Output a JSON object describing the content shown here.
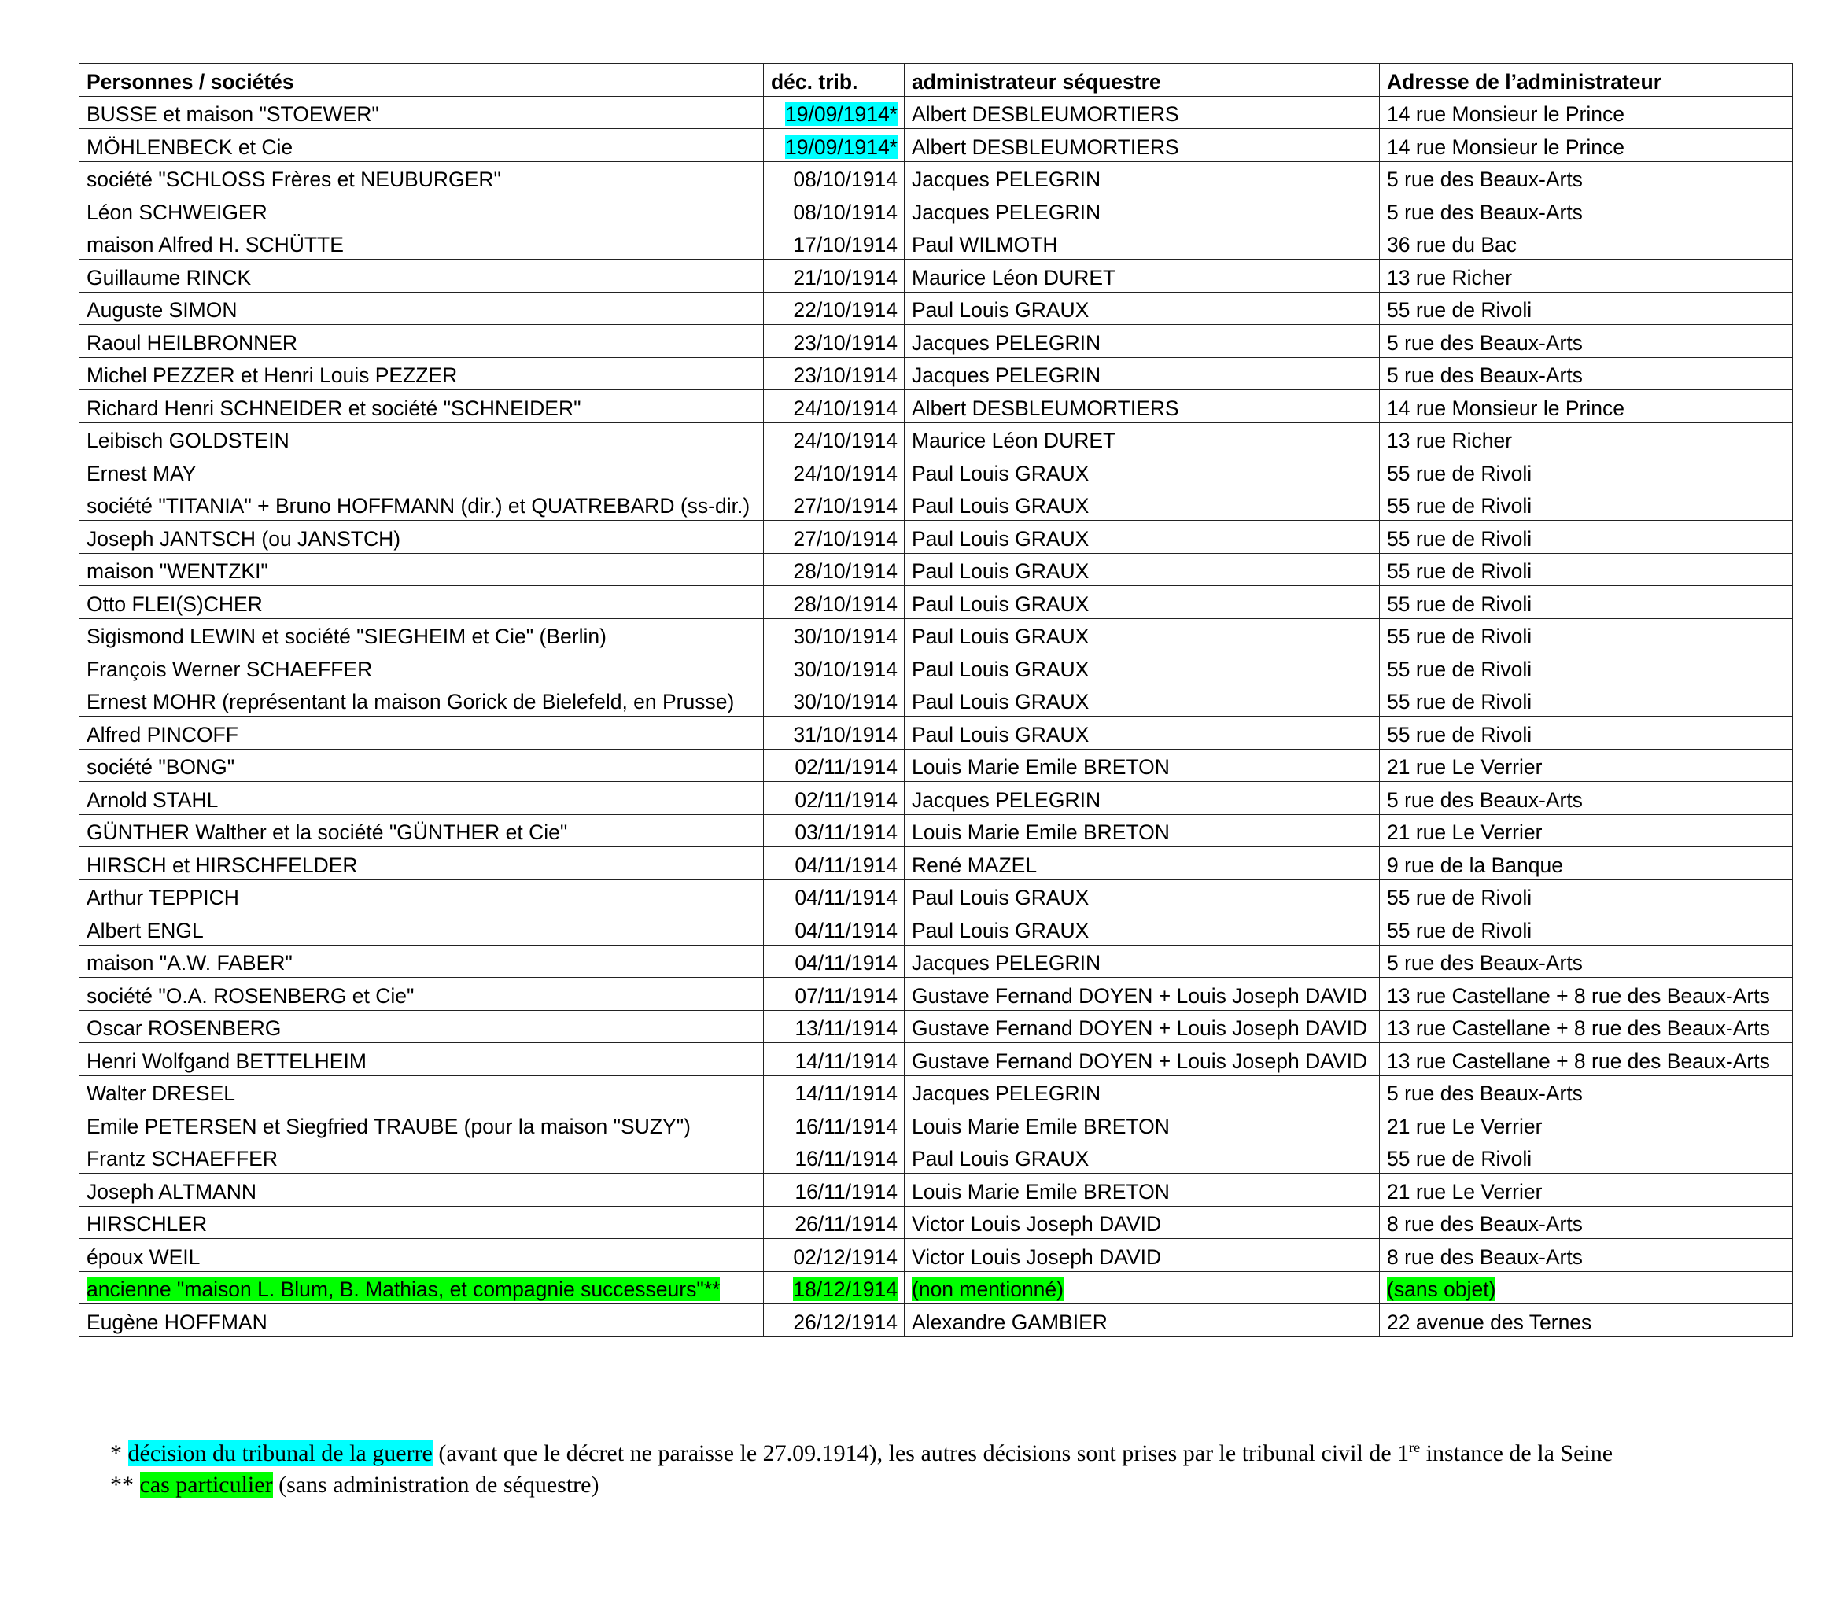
{
  "colors": {
    "highlight_tribunal_guerre": "#00ffff",
    "highlight_cas_particulier": "#00ff00"
  },
  "table": {
    "headers": [
      "Personnes / sociétés",
      "déc. trib.",
      "administrateur séquestre",
      "Adresse de l’administrateur"
    ],
    "rows": [
      {
        "person": "BUSSE et maison \"STOEWER\"",
        "date": "19/09/1914*",
        "admin": "Albert DESBLEUMORTIERS",
        "address": "14 rue Monsieur le Prince",
        "highlight": "date-cyan"
      },
      {
        "person": "MÖHLENBECK et Cie",
        "date": "19/09/1914*",
        "admin": "Albert DESBLEUMORTIERS",
        "address": "14 rue Monsieur le Prince",
        "highlight": "date-cyan"
      },
      {
        "person": "société \"SCHLOSS Frères et NEUBURGER\"",
        "date": "08/10/1914",
        "admin": "Jacques PELEGRIN",
        "address": "5 rue des Beaux-Arts"
      },
      {
        "person": "Léon SCHWEIGER",
        "date": "08/10/1914",
        "admin": "Jacques PELEGRIN",
        "address": "5 rue des Beaux-Arts"
      },
      {
        "person": "maison Alfred H. SCHÜTTE",
        "date": "17/10/1914",
        "admin": "Paul WILMOTH",
        "address": "36 rue du Bac"
      },
      {
        "person": "Guillaume RINCK",
        "date": "21/10/1914",
        "admin": "Maurice Léon DURET",
        "address": "13 rue Richer"
      },
      {
        "person": "Auguste SIMON",
        "date": "22/10/1914",
        "admin": "Paul Louis GRAUX",
        "address": "55 rue de Rivoli"
      },
      {
        "person": "Raoul HEILBRONNER",
        "date": "23/10/1914",
        "admin": "Jacques PELEGRIN",
        "address": "5 rue des Beaux-Arts"
      },
      {
        "person": "Michel PEZZER et Henri Louis PEZZER",
        "date": "23/10/1914",
        "admin": "Jacques PELEGRIN",
        "address": "5 rue des Beaux-Arts"
      },
      {
        "person": "Richard Henri SCHNEIDER et société \"SCHNEIDER\"",
        "date": "24/10/1914",
        "admin": "Albert DESBLEUMORTIERS",
        "address": "14 rue Monsieur le Prince"
      },
      {
        "person": "Leibisch GOLDSTEIN",
        "date": "24/10/1914",
        "admin": "Maurice Léon DURET",
        "address": "13 rue Richer"
      },
      {
        "person": "Ernest MAY",
        "date": "24/10/1914",
        "admin": "Paul Louis GRAUX",
        "address": "55 rue de Rivoli"
      },
      {
        "person": "société \"TITANIA\" + Bruno HOFFMANN (dir.) et QUATREBARD (ss-dir.)",
        "date": "27/10/1914",
        "admin": "Paul Louis GRAUX",
        "address": "55 rue de Rivoli"
      },
      {
        "person": "Joseph JANTSCH (ou JANSTCH)",
        "date": "27/10/1914",
        "admin": "Paul Louis GRAUX",
        "address": "55 rue de Rivoli"
      },
      {
        "person": "maison \"WENTZKI\"",
        "date": "28/10/1914",
        "admin": "Paul Louis GRAUX",
        "address": "55 rue de Rivoli"
      },
      {
        "person": "Otto FLEI(S)CHER",
        "date": "28/10/1914",
        "admin": "Paul Louis GRAUX",
        "address": "55 rue de Rivoli"
      },
      {
        "person": "Sigismond LEWIN et société \"SIEGHEIM et Cie\" (Berlin)",
        "date": "30/10/1914",
        "admin": "Paul Louis GRAUX",
        "address": "55 rue de Rivoli"
      },
      {
        "person": "François Werner SCHAEFFER",
        "date": "30/10/1914",
        "admin": "Paul Louis GRAUX",
        "address": "55 rue de Rivoli"
      },
      {
        "person": "Ernest MOHR (représentant la maison Gorick de Bielefeld, en Prusse)",
        "date": "30/10/1914",
        "admin": "Paul Louis GRAUX",
        "address": "55 rue de Rivoli"
      },
      {
        "person": "Alfred PINCOFF",
        "date": "31/10/1914",
        "admin": "Paul Louis GRAUX",
        "address": "55 rue de Rivoli"
      },
      {
        "person": "société \"BONG\"",
        "date": "02/11/1914",
        "admin": "Louis Marie Emile BRETON",
        "address": "21 rue Le Verrier"
      },
      {
        "person": "Arnold STAHL",
        "date": "02/11/1914",
        "admin": "Jacques PELEGRIN",
        "address": "5 rue des Beaux-Arts"
      },
      {
        "person": "GÜNTHER Walther et la société \"GÜNTHER et Cie\"",
        "date": "03/11/1914",
        "admin": "Louis Marie Emile BRETON",
        "address": "21 rue Le Verrier"
      },
      {
        "person": "HIRSCH et HIRSCHFELDER",
        "date": "04/11/1914",
        "admin": "René MAZEL",
        "address": "9 rue de la Banque"
      },
      {
        "person": "Arthur TEPPICH",
        "date": "04/11/1914",
        "admin": "Paul Louis GRAUX",
        "address": "55 rue de Rivoli"
      },
      {
        "person": "Albert ENGL",
        "date": "04/11/1914",
        "admin": "Paul Louis GRAUX",
        "address": "55 rue de Rivoli"
      },
      {
        "person": "maison \"A.W. FABER\"",
        "date": "04/11/1914",
        "admin": "Jacques PELEGRIN",
        "address": "5 rue des Beaux-Arts"
      },
      {
        "person": "société \"O.A. ROSENBERG et Cie\"",
        "date": "07/11/1914",
        "admin": "Gustave Fernand DOYEN + Louis Joseph DAVID",
        "address": "13 rue Castellane + 8 rue des Beaux-Arts"
      },
      {
        "person": "Oscar ROSENBERG",
        "date": "13/11/1914",
        "admin": "Gustave Fernand DOYEN + Louis Joseph DAVID",
        "address": "13 rue Castellane + 8 rue des Beaux-Arts"
      },
      {
        "person": "Henri Wolfgand BETTELHEIM",
        "date": "14/11/1914",
        "admin": "Gustave Fernand DOYEN + Louis Joseph DAVID",
        "address": "13 rue Castellane + 8 rue des Beaux-Arts"
      },
      {
        "person": "Walter DRESEL",
        "date": "14/11/1914",
        "admin": "Jacques PELEGRIN",
        "address": "5 rue des Beaux-Arts"
      },
      {
        "person": "Emile PETERSEN et Siegfried TRAUBE (pour la maison \"SUZY\")",
        "date": "16/11/1914",
        "admin": "Louis Marie Emile BRETON",
        "address": "21 rue Le Verrier"
      },
      {
        "person": "Frantz SCHAEFFER",
        "date": "16/11/1914",
        "admin": "Paul Louis GRAUX",
        "address": "55 rue de Rivoli"
      },
      {
        "person": "Joseph ALTMANN",
        "date": "16/11/1914",
        "admin": "Louis Marie Emile BRETON",
        "address": "21 rue Le Verrier"
      },
      {
        "person": "HIRSCHLER",
        "date": "26/11/1914",
        "admin": "Victor Louis Joseph DAVID",
        "address": "8 rue des Beaux-Arts"
      },
      {
        "person": "époux WEIL",
        "date": "02/12/1914",
        "admin": "Victor Louis Joseph DAVID",
        "address": "8 rue des Beaux-Arts"
      },
      {
        "person": "ancienne \"maison L. Blum, B. Mathias, et compagnie successeurs\"**",
        "date": "18/12/1914",
        "admin": "(non mentionné)",
        "address": "(sans objet)",
        "highlight": "all-green"
      },
      {
        "person": "Eugène HOFFMAN",
        "date": "26/12/1914",
        "admin": "Alexandre GAMBIER",
        "address": "22 avenue des Ternes"
      }
    ]
  },
  "footnotes": {
    "note1": {
      "marker": "* ",
      "highlighted": "décision du tribunal de la guerre",
      "text": " (avant que le décret ne paraisse le 27.09.1914), les autres décisions sont prises par le tribunal civil de 1",
      "sup": "re",
      "text_end": " instance de la Seine"
    },
    "note2": {
      "marker": "** ",
      "highlighted": "cas particulier",
      "text": " (sans administration de séquestre)"
    }
  }
}
